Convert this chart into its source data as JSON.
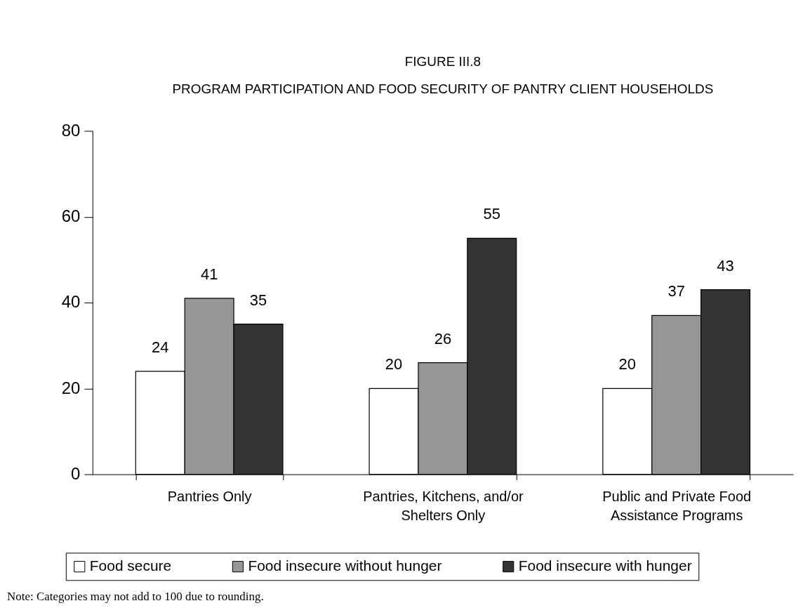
{
  "chart_data": {
    "type": "bar",
    "title": "FIGURE III.8",
    "subtitle": "PROGRAM PARTICIPATION AND FOOD SECURITY OF PANTRY CLIENT HOUSEHOLDS",
    "categories": [
      "Pantries Only",
      "Pantries, Kitchens, and/or Shelters Only",
      "Public and Private Food Assistance Programs"
    ],
    "series": [
      {
        "name": "Food secure",
        "color": "#ffffff",
        "values": [
          24,
          20,
          20
        ]
      },
      {
        "name": "Food insecure without hunger",
        "color": "#969696",
        "values": [
          41,
          26,
          37
        ]
      },
      {
        "name": "Food insecure with hunger",
        "color": "#333333",
        "values": [
          35,
          55,
          43
        ]
      }
    ],
    "ylim": [
      0,
      80
    ],
    "yticks": [
      0,
      20,
      40,
      60,
      80
    ],
    "data_labels": true,
    "legend": "bottom",
    "annotations": [
      "Note:  Categories may not add to 100 due to rounding."
    ]
  }
}
